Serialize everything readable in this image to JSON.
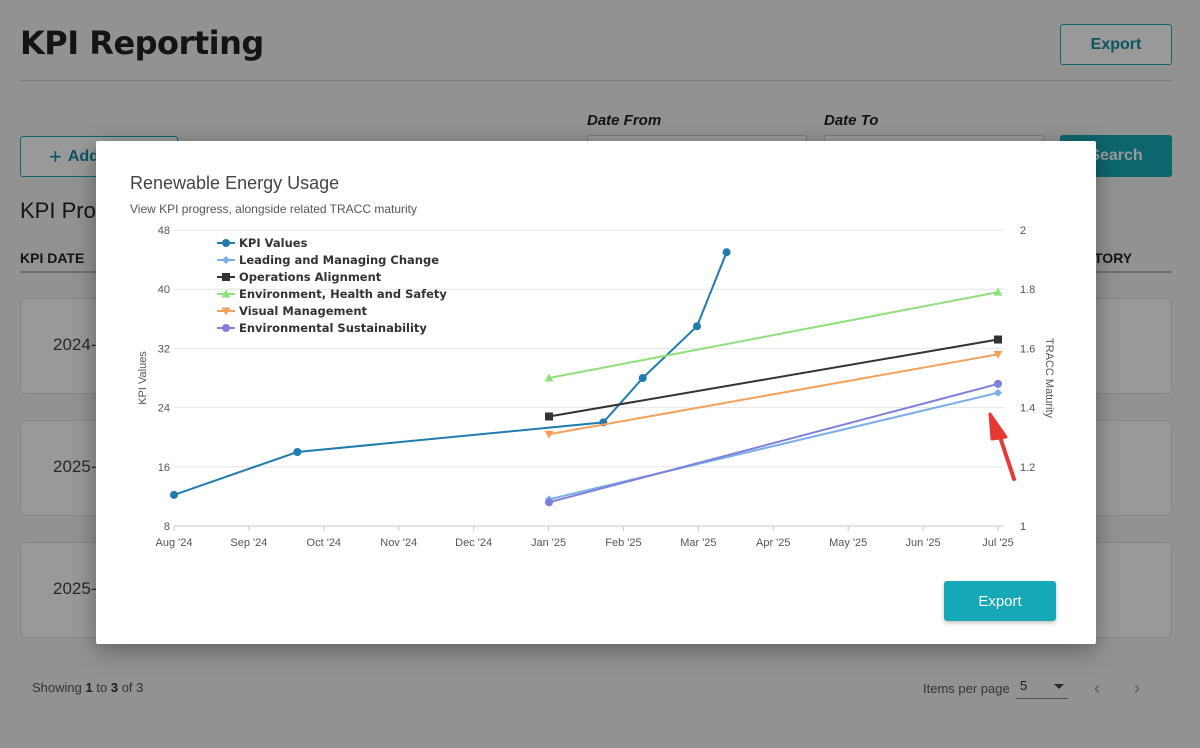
{
  "page": {
    "title": "KPI Reporting",
    "export_label": "Export",
    "add_label": "Add",
    "date_from_label": "Date From",
    "date_to_label": "Date To",
    "search_label": "Search",
    "section_title": "KPI Pro",
    "col_kpi_date": "KPI DATE",
    "col_history": "TORY",
    "rows": [
      {
        "date": "2024-"
      },
      {
        "date": "2025-"
      },
      {
        "date": "2025-"
      }
    ],
    "footer": {
      "showing": "Showing",
      "from": "1",
      "to_word": "to",
      "to": "3",
      "of_word": "of",
      "total": "3"
    },
    "items_per_page_label": "Items per page",
    "items_per_page_value": "5",
    "prev_icon": "‹",
    "next_icon": "›"
  },
  "modal": {
    "title": "Renewable Energy Usage",
    "subtitle": "View KPI progress, alongside related TRACC maturity",
    "export_label": "Export"
  },
  "chart_data": {
    "type": "line",
    "x_ticks": [
      "Aug '24",
      "Sep '24",
      "Oct '24",
      "Nov '24",
      "Dec '24",
      "Jan '25",
      "Feb '25",
      "Mar '25",
      "Apr '25",
      "May '25",
      "Jun '25",
      "Jul '25"
    ],
    "y_left": {
      "label": "KPI Values",
      "min": 8,
      "max": 48,
      "ticks": [
        8,
        16,
        24,
        32,
        40,
        48
      ]
    },
    "y_right": {
      "label": "TRACC Maturity",
      "min": 1,
      "max": 2,
      "ticks": [
        "1",
        "1.2",
        "1.4",
        "1.6",
        "1.8",
        "2"
      ]
    },
    "legend_position": "top-left",
    "grid": true,
    "series": [
      {
        "name": "KPI Values",
        "axis": "left",
        "color": "#1f7bb0",
        "marker": "circle",
        "points": [
          [
            "2024-08-01",
            12.2
          ],
          [
            "2024-09-20",
            18.0
          ],
          [
            "2025-01-22",
            22
          ],
          [
            "2025-02-07",
            28
          ],
          [
            "2025-03-01",
            35
          ],
          [
            "2025-03-13",
            45
          ]
        ]
      },
      {
        "name": "Leading and Managing Change",
        "axis": "right",
        "color": "#7aaee6",
        "marker": "diamond",
        "points": [
          [
            "2024-12-31",
            1.09
          ],
          [
            "2025-07-01",
            1.45
          ]
        ]
      },
      {
        "name": "Operations Alignment",
        "axis": "right",
        "color": "#333333",
        "marker": "square",
        "points": [
          [
            "2024-12-31",
            1.37
          ],
          [
            "2025-07-01",
            1.63
          ]
        ]
      },
      {
        "name": "Environment, Health and Safety",
        "axis": "right",
        "color": "#8ee07a",
        "marker": "triangle-up",
        "points": [
          [
            "2024-12-31",
            1.5
          ],
          [
            "2025-07-01",
            1.79
          ]
        ]
      },
      {
        "name": "Visual Management",
        "axis": "right",
        "color": "#f2a05a",
        "marker": "triangle-down",
        "points": [
          [
            "2024-12-31",
            1.31
          ],
          [
            "2025-07-01",
            1.58
          ]
        ]
      },
      {
        "name": "Environmental Sustainability",
        "axis": "right",
        "color": "#7f7fdc",
        "marker": "circle",
        "points": [
          [
            "2024-12-31",
            1.08
          ],
          [
            "2025-07-01",
            1.48
          ]
        ]
      }
    ]
  }
}
